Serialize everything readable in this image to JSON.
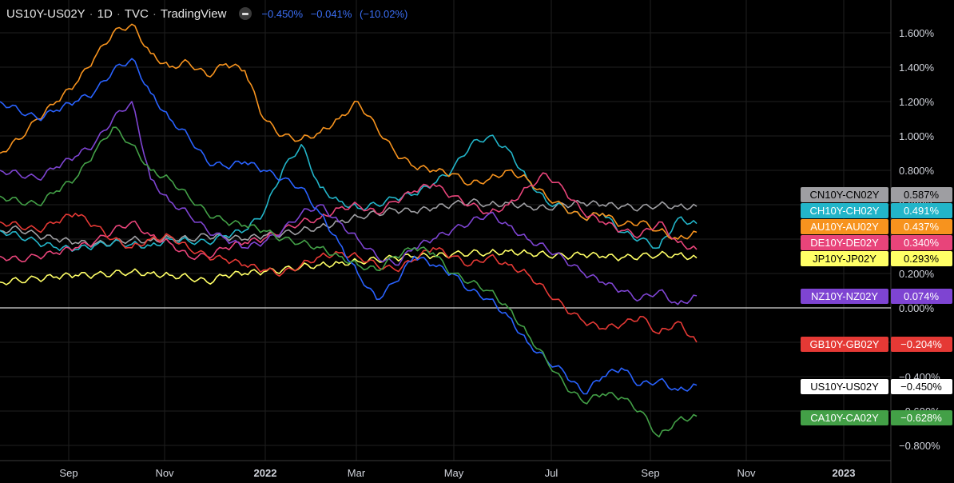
{
  "header": {
    "symbol": "US10Y-US02Y",
    "interval": "1D",
    "source": "TVC",
    "platform": "TradingView",
    "value": "−0.450%",
    "change": "−0.041%",
    "change_pct": "(−10.02%)"
  },
  "chart_data": {
    "type": "line",
    "title": "US10Y-US02Y · 1D · TVC · TradingView",
    "xlabel": "",
    "ylabel": "",
    "x_tick_labels": [
      "Sep",
      "Nov",
      "2022",
      "Mar",
      "May",
      "Jul",
      "Sep",
      "Nov",
      "2023"
    ],
    "y_tick_labels": [
      "1.600%",
      "1.400%",
      "1.200%",
      "1.000%",
      "0.800%",
      "0.600%",
      "0.400%",
      "0.200%",
      "0.000%",
      "−0.200%",
      "−0.400%",
      "−0.600%",
      "−0.800%"
    ],
    "ylim": [
      -0.85,
      1.75
    ],
    "grid": true,
    "series": [
      {
        "name": "CN10Y-CN02Y",
        "color": "#9e9ea2",
        "last": "0.587%",
        "values": [
          0.45,
          0.46,
          0.42,
          0.4,
          0.38,
          0.37,
          0.38,
          0.4,
          0.39,
          0.41,
          0.4,
          0.42,
          0.41,
          0.4,
          0.42,
          0.43,
          0.45,
          0.47,
          0.5,
          0.53,
          0.55,
          0.57,
          0.56,
          0.58,
          0.6,
          0.62,
          0.6,
          0.61,
          0.59,
          0.58,
          0.6,
          0.61,
          0.6,
          0.59,
          0.58,
          0.6,
          0.59,
          0.59
        ]
      },
      {
        "name": "CH10Y-CH02Y",
        "color": "#22b5c9",
        "last": "0.491%",
        "values": [
          0.45,
          0.42,
          0.38,
          0.35,
          0.34,
          0.36,
          0.38,
          0.37,
          0.36,
          0.4,
          0.39,
          0.38,
          0.42,
          0.45,
          0.55,
          0.8,
          0.95,
          0.7,
          0.62,
          0.58,
          0.6,
          0.64,
          0.66,
          0.72,
          0.8,
          0.95,
          1.0,
          0.92,
          0.75,
          0.62,
          0.58,
          0.52,
          0.55,
          0.44,
          0.4,
          0.35,
          0.52,
          0.49
        ]
      },
      {
        "name": "AU10Y-AU02Y",
        "color": "#f7931e",
        "last": "0.437%",
        "values": [
          0.9,
          0.98,
          1.1,
          1.2,
          1.3,
          1.45,
          1.6,
          1.65,
          1.48,
          1.4,
          1.43,
          1.35,
          1.42,
          1.38,
          1.1,
          1.0,
          0.98,
          1.02,
          1.1,
          1.2,
          1.05,
          0.9,
          0.82,
          0.8,
          0.78,
          0.72,
          0.75,
          0.8,
          0.75,
          0.65,
          0.58,
          0.52,
          0.55,
          0.48,
          0.5,
          0.45,
          0.4,
          0.44
        ]
      },
      {
        "name": "DE10Y-DE02Y",
        "color": "#e8447a",
        "last": "0.340%",
        "values": [
          0.3,
          0.28,
          0.3,
          0.32,
          0.35,
          0.38,
          0.45,
          0.5,
          0.42,
          0.38,
          0.3,
          0.3,
          0.35,
          0.38,
          0.4,
          0.45,
          0.5,
          0.52,
          0.58,
          0.6,
          0.55,
          0.62,
          0.68,
          0.72,
          0.65,
          0.6,
          0.55,
          0.6,
          0.7,
          0.78,
          0.68,
          0.55,
          0.5,
          0.45,
          0.42,
          0.5,
          0.38,
          0.34
        ]
      },
      {
        "name": "JP10Y-JP02Y",
        "color": "#ffff66",
        "last": "0.293%",
        "values": [
          0.15,
          0.16,
          0.17,
          0.18,
          0.19,
          0.19,
          0.2,
          0.21,
          0.2,
          0.19,
          0.18,
          0.15,
          0.19,
          0.2,
          0.21,
          0.22,
          0.24,
          0.25,
          0.26,
          0.27,
          0.28,
          0.29,
          0.3,
          0.3,
          0.31,
          0.32,
          0.32,
          0.33,
          0.32,
          0.31,
          0.3,
          0.31,
          0.3,
          0.29,
          0.3,
          0.31,
          0.31,
          0.29
        ]
      },
      {
        "name": "NZ10Y-NZ02Y",
        "color": "#7e44d2",
        "last": "0.074%",
        "values": [
          0.8,
          0.78,
          0.75,
          0.82,
          0.88,
          0.95,
          1.1,
          1.2,
          0.75,
          0.62,
          0.55,
          0.45,
          0.4,
          0.35,
          0.38,
          0.45,
          0.55,
          0.6,
          0.5,
          0.4,
          0.3,
          0.25,
          0.35,
          0.4,
          0.45,
          0.5,
          0.55,
          0.48,
          0.4,
          0.35,
          0.28,
          0.2,
          0.15,
          0.1,
          0.05,
          0.1,
          0.02,
          0.07
        ]
      },
      {
        "name": "GB10Y-GB02Y",
        "color": "#e53935",
        "last": "−0.204%",
        "values": [
          0.5,
          0.48,
          0.45,
          0.5,
          0.55,
          0.48,
          0.4,
          0.35,
          0.4,
          0.42,
          0.35,
          0.3,
          0.28,
          0.25,
          0.22,
          0.2,
          0.25,
          0.3,
          0.32,
          0.3,
          0.25,
          0.22,
          0.28,
          0.35,
          0.3,
          0.25,
          0.3,
          0.25,
          0.2,
          0.1,
          0.0,
          -0.08,
          -0.12,
          -0.1,
          -0.05,
          -0.15,
          -0.08,
          -0.2
        ]
      },
      {
        "name": "US10Y-US02Y",
        "color": "#2962ff",
        "last": "−0.450%",
        "values": [
          1.2,
          1.15,
          1.1,
          1.15,
          1.2,
          1.25,
          1.38,
          1.45,
          1.25,
          1.1,
          1.0,
          0.85,
          0.82,
          0.85,
          0.8,
          0.75,
          0.7,
          0.55,
          0.38,
          0.2,
          0.05,
          0.15,
          0.3,
          0.25,
          0.2,
          0.1,
          0.05,
          -0.05,
          -0.2,
          -0.3,
          -0.38,
          -0.5,
          -0.4,
          -0.35,
          -0.45,
          -0.42,
          -0.48,
          -0.45
        ]
      },
      {
        "name": "CA10Y-CA02Y",
        "color": "#43a047",
        "last": "−0.628%",
        "values": [
          0.65,
          0.62,
          0.6,
          0.68,
          0.75,
          0.9,
          1.05,
          0.95,
          0.8,
          0.75,
          0.65,
          0.55,
          0.5,
          0.48,
          0.45,
          0.4,
          0.38,
          0.35,
          0.3,
          0.25,
          0.22,
          0.3,
          0.35,
          0.32,
          0.2,
          0.15,
          0.1,
          0.0,
          -0.15,
          -0.3,
          -0.45,
          -0.55,
          -0.5,
          -0.52,
          -0.6,
          -0.75,
          -0.65,
          -0.63
        ]
      }
    ],
    "zero_line": true
  },
  "labels_order_note_none": ""
}
